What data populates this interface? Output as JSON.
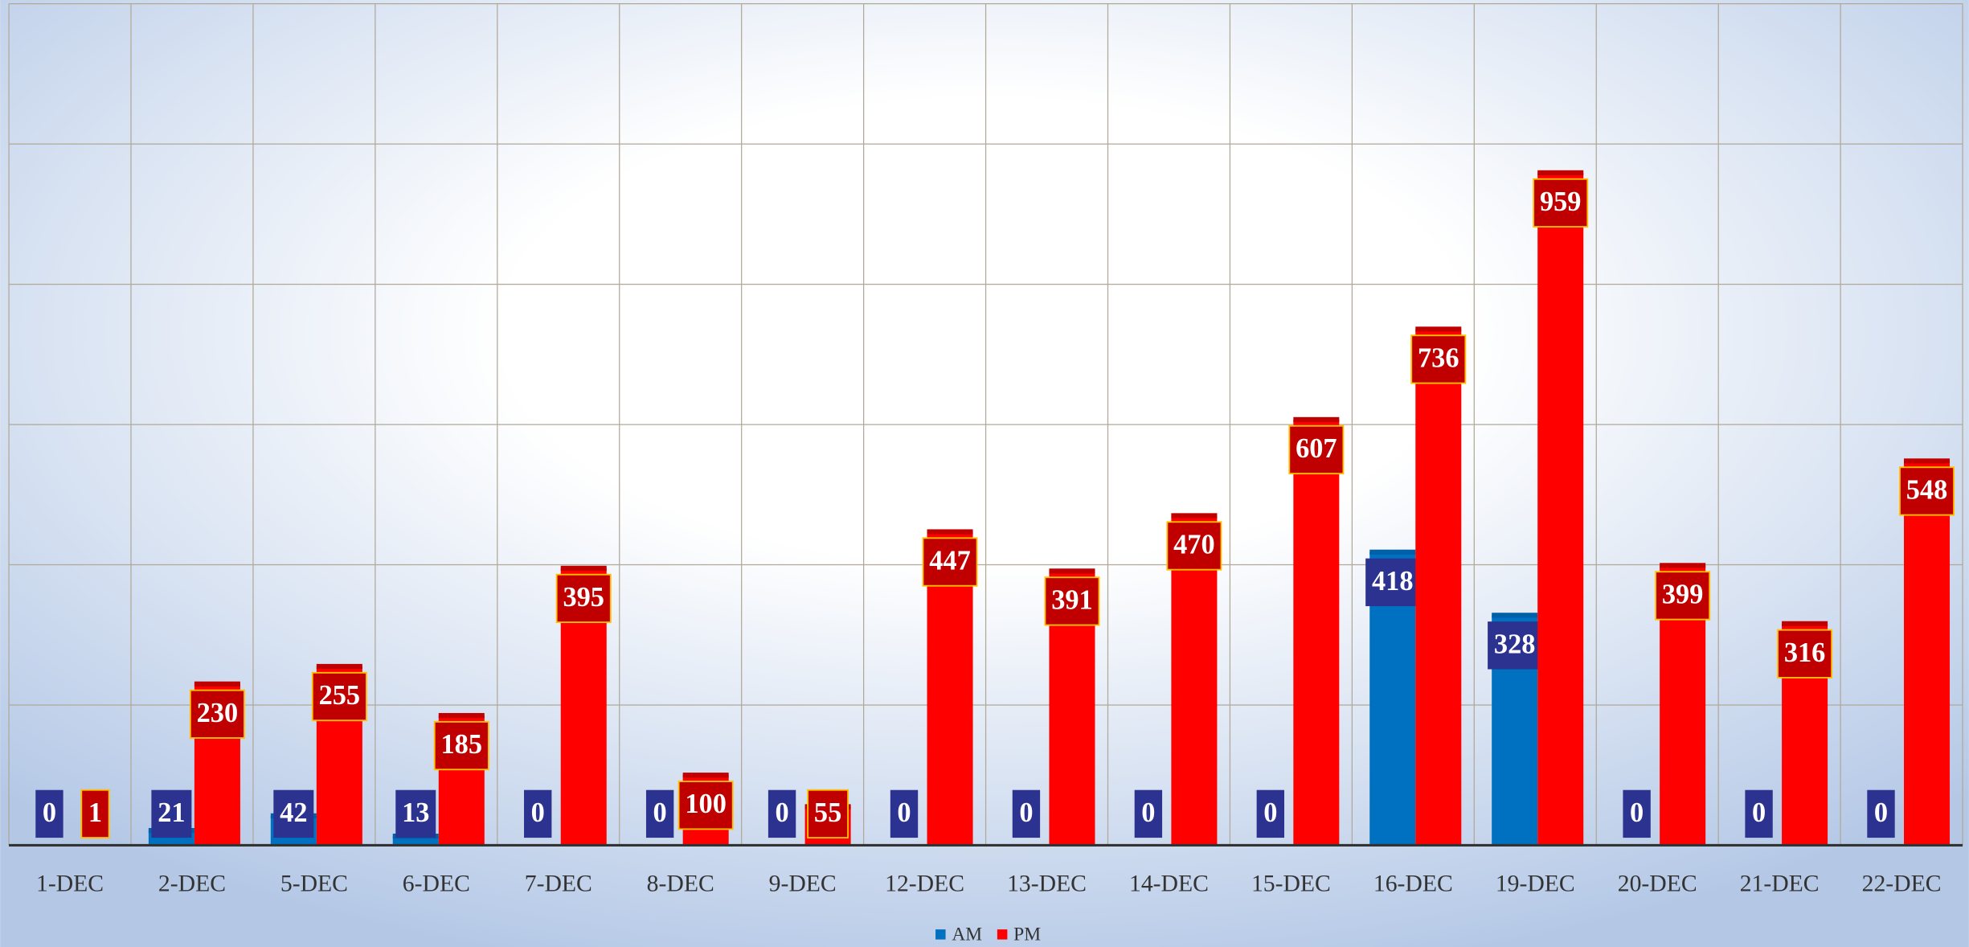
{
  "chart_data": {
    "type": "bar",
    "categories": [
      "1-DEC",
      "2-DEC",
      "5-DEC",
      "6-DEC",
      "7-DEC",
      "8-DEC",
      "9-DEC",
      "12-DEC",
      "13-DEC",
      "14-DEC",
      "15-DEC",
      "16-DEC",
      "19-DEC",
      "20-DEC",
      "21-DEC",
      "22-DEC"
    ],
    "series": [
      {
        "name": "AM",
        "color": "#0070c0",
        "values": [
          0,
          21,
          42,
          13,
          0,
          0,
          0,
          0,
          0,
          0,
          0,
          418,
          328,
          0,
          0,
          0
        ]
      },
      {
        "name": "PM",
        "color": "#ff0000",
        "values": [
          1,
          230,
          255,
          185,
          395,
          100,
          55,
          447,
          391,
          470,
          607,
          736,
          959,
          399,
          316,
          548
        ]
      }
    ],
    "ylim": [
      0,
      1200
    ],
    "yticks": [
      0,
      200,
      400,
      600,
      800,
      1000,
      1200
    ],
    "grid": true,
    "legend": "bottom"
  }
}
